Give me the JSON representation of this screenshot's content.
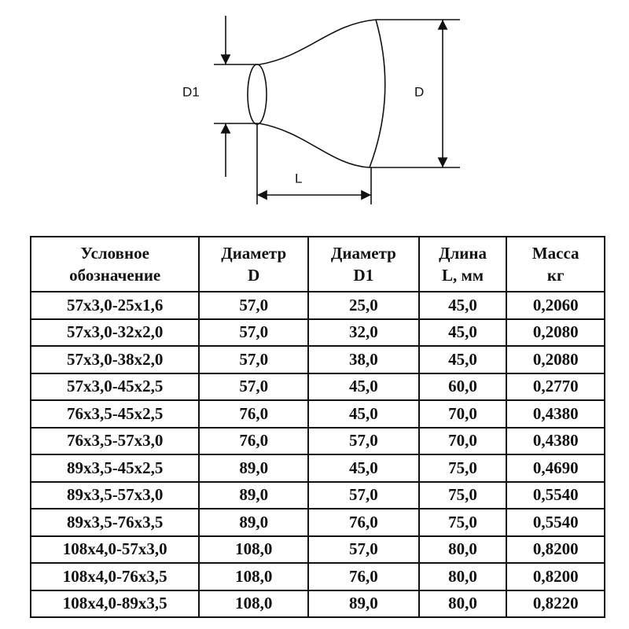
{
  "diagram": {
    "labels": {
      "d1": "D1",
      "d": "D",
      "l": "L"
    }
  },
  "table": {
    "header": [
      [
        "Условное",
        "обозначение"
      ],
      [
        "Диаметр",
        "D"
      ],
      [
        "Диаметр",
        "D1"
      ],
      [
        "Длина",
        "L, мм"
      ],
      [
        "Масса",
        "кг"
      ]
    ],
    "rows": [
      [
        "57x3,0-25x1,6",
        "57,0",
        "25,0",
        "45,0",
        "0,2060"
      ],
      [
        "57x3,0-32x2,0",
        "57,0",
        "32,0",
        "45,0",
        "0,2080"
      ],
      [
        "57x3,0-38x2,0",
        "57,0",
        "38,0",
        "45,0",
        "0,2080"
      ],
      [
        "57x3,0-45x2,5",
        "57,0",
        "45,0",
        "60,0",
        "0,2770"
      ],
      [
        "76x3,5-45x2,5",
        "76,0",
        "45,0",
        "70,0",
        "0,4380"
      ],
      [
        "76x3,5-57x3,0",
        "76,0",
        "57,0",
        "70,0",
        "0,4380"
      ],
      [
        "89x3,5-45x2,5",
        "89,0",
        "45,0",
        "75,0",
        "0,4690"
      ],
      [
        "89x3,5-57x3,0",
        "89,0",
        "57,0",
        "75,0",
        "0,5540"
      ],
      [
        "89x3,5-76x3,5",
        "89,0",
        "76,0",
        "75,0",
        "0,5540"
      ],
      [
        "108x4,0-57x3,0",
        "108,0",
        "57,0",
        "80,0",
        "0,8200"
      ],
      [
        "108x4,0-76x3,5",
        "108,0",
        "76,0",
        "80,0",
        "0,8200"
      ],
      [
        "108x4,0-89x3,5",
        "108,0",
        "89,0",
        "80,0",
        "0,8220"
      ]
    ]
  }
}
